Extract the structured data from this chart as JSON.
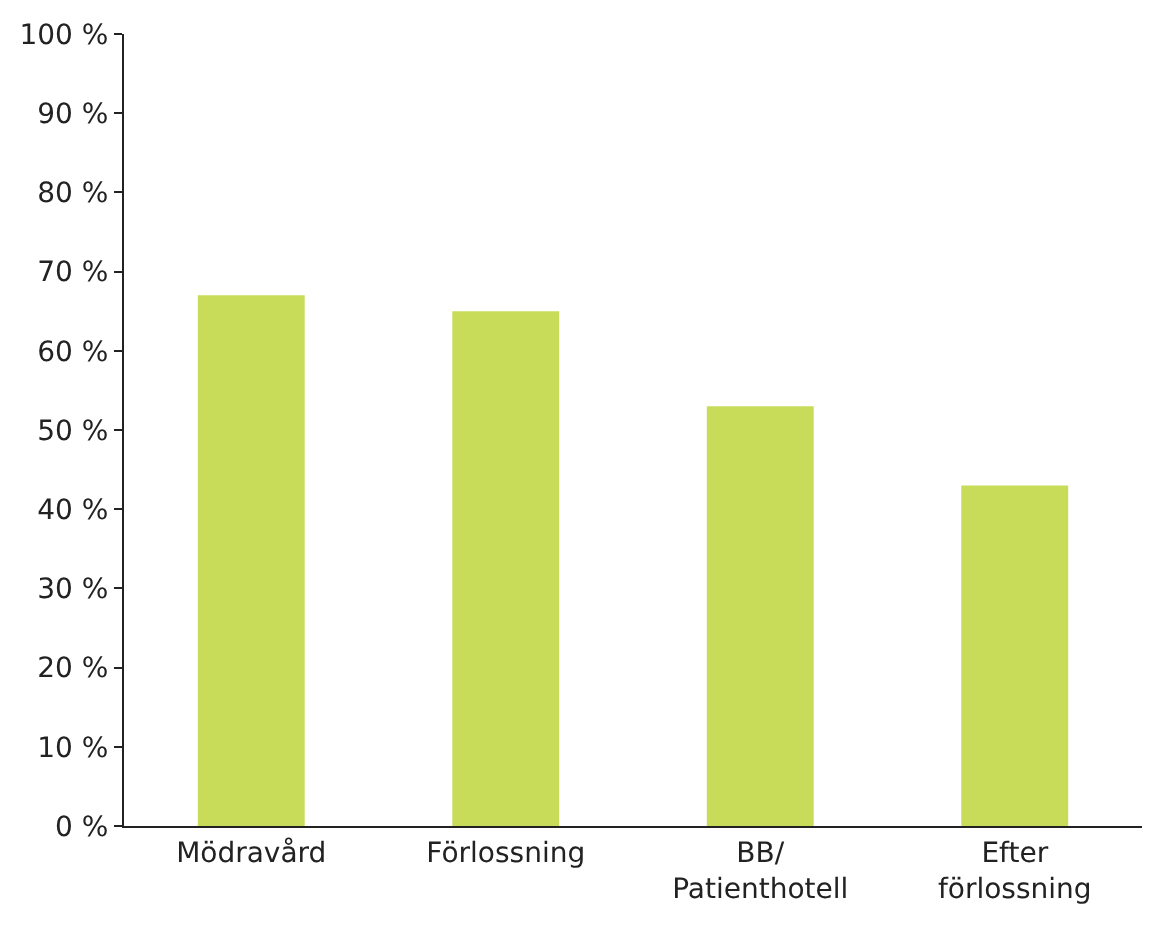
{
  "chart_data": {
    "type": "bar",
    "categories": [
      "Mödravård",
      "Förlossning",
      "BB/\nPatienthotell",
      "Efter\nförlossning"
    ],
    "values": [
      67,
      65,
      53,
      43
    ],
    "color": "#c8dc5a",
    "ylim": [
      0,
      100
    ],
    "yticks": [
      {
        "value": 0,
        "label": "0 %"
      },
      {
        "value": 10,
        "label": "10 %"
      },
      {
        "value": 20,
        "label": "20 %"
      },
      {
        "value": 30,
        "label": "30 %"
      },
      {
        "value": 40,
        "label": "40 %"
      },
      {
        "value": 50,
        "label": "50 %"
      },
      {
        "value": 60,
        "label": "60 %"
      },
      {
        "value": 70,
        "label": "70 %"
      },
      {
        "value": 80,
        "label": "80 %"
      },
      {
        "value": 90,
        "label": "90 %"
      },
      {
        "value": 100,
        "label": "100 %"
      }
    ],
    "grid": false
  }
}
